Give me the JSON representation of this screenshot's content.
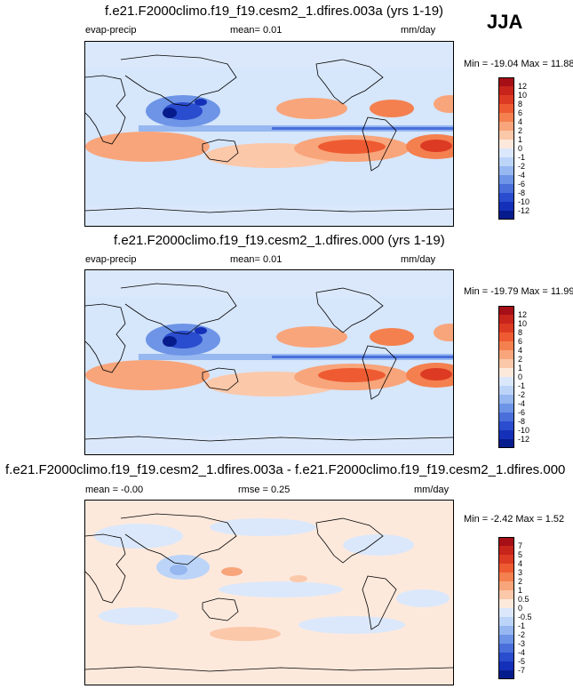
{
  "season": "JJA",
  "panels": [
    {
      "title": "f.e21.F2000climo.f19_f19.cesm2_1.dfires.003a (yrs 1-19)",
      "variable": "evap-precip",
      "mean_text": "mean=   0.01",
      "units": "mm/day",
      "minmax": "Min = -19.04 Max =  11.88",
      "levels": [
        "12",
        "10",
        "8",
        "6",
        "4",
        "2",
        "1",
        "0",
        "-1",
        "-2",
        "-4",
        "-6",
        "-8",
        "-10",
        "-12"
      ]
    },
    {
      "title": "f.e21.F2000climo.f19_f19.cesm2_1.dfires.000 (yrs 1-19)",
      "variable": "evap-precip",
      "mean_text": "mean=   0.01",
      "units": "mm/day",
      "minmax": "Min = -19.79 Max =  11.99",
      "levels": [
        "12",
        "10",
        "8",
        "6",
        "4",
        "2",
        "1",
        "0",
        "-1",
        "-2",
        "-4",
        "-6",
        "-8",
        "-10",
        "-12"
      ]
    },
    {
      "title": "f.e21.F2000climo.f19_f19.cesm2_1.dfires.003a - f.e21.F2000climo.f19_f19.cesm2_1.dfires.000",
      "mean_text": "mean =  -0.00",
      "rmse_text": "rmse =   0.25",
      "units": "mm/day",
      "minmax": "Min =  -2.42 Max =   1.52",
      "levels": [
        "7",
        "5",
        "4",
        "3",
        "2",
        "1",
        "0.5",
        "0",
        "-0.5",
        "-1",
        "-2",
        "-3",
        "-4",
        "-5",
        "-7"
      ]
    }
  ],
  "colors": {
    "bar16": [
      "#a50f15",
      "#c7241c",
      "#dd3a23",
      "#ee5b32",
      "#f4804f",
      "#f8a57b",
      "#fbc8aa",
      "#fde9dc",
      "#dbe8fb",
      "#bcd4f8",
      "#96b7f0",
      "#6d94e6",
      "#4a6fdb",
      "#2a4cce",
      "#1530b8",
      "#071c8c"
    ],
    "ocean": "#d6e6fb"
  },
  "chart_data": [
    {
      "type": "heatmap",
      "title": "f.e21.F2000climo.f19_f19.cesm2_1.dfires.003a (yrs 1-19)",
      "field": "evap-precip",
      "season": "JJA",
      "units": "mm/day",
      "mean": 0.01,
      "min": -19.04,
      "max": 11.88,
      "contour_levels": [
        -12,
        -10,
        -8,
        -6,
        -4,
        -2,
        -1,
        0,
        1,
        2,
        4,
        6,
        8,
        10,
        12
      ]
    },
    {
      "type": "heatmap",
      "title": "f.e21.F2000climo.f19_f19.cesm2_1.dfires.000 (yrs 1-19)",
      "field": "evap-precip",
      "season": "JJA",
      "units": "mm/day",
      "mean": 0.01,
      "min": -19.79,
      "max": 11.99,
      "contour_levels": [
        -12,
        -10,
        -8,
        -6,
        -4,
        -2,
        -1,
        0,
        1,
        2,
        4,
        6,
        8,
        10,
        12
      ]
    },
    {
      "type": "heatmap",
      "title": "f.e21.F2000climo.f19_f19.cesm2_1.dfires.003a - f.e21.F2000climo.f19_f19.cesm2_1.dfires.000",
      "field": "difference",
      "season": "JJA",
      "units": "mm/day",
      "mean": -0.0,
      "rmse": 0.25,
      "min": -2.42,
      "max": 1.52,
      "contour_levels": [
        -7,
        -5,
        -4,
        -3,
        -2,
        -1,
        -0.5,
        0,
        0.5,
        1,
        2,
        3,
        4,
        5,
        7
      ]
    }
  ]
}
